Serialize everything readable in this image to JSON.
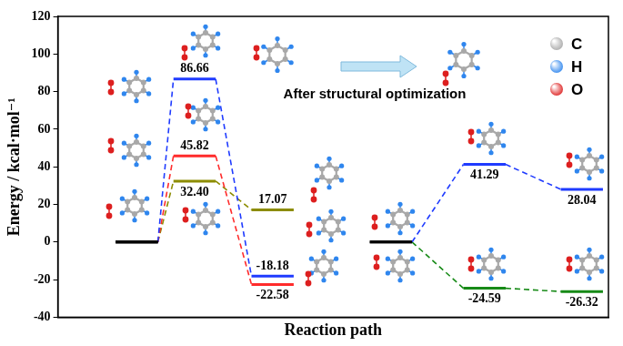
{
  "chart_data": {
    "type": "line",
    "y_label": "Energy / kcal·mol⁻¹",
    "x_label": "Reaction path",
    "ylim": [
      -40,
      120
    ],
    "yticks": [
      -40,
      -20,
      0,
      20,
      40,
      60,
      80,
      100,
      120
    ],
    "grid": false,
    "tick_labels": "y",
    "data_labels": true,
    "categories": [
      null,
      null,
      null,
      null,
      null,
      null
    ],
    "series": [
      {
        "color": "#1f3bff",
        "line_style": "dashed",
        "colors": [
          "#000000",
          "#1f3bff",
          "#1f3bff",
          null,
          null,
          null
        ],
        "values": [
          0,
          86.66,
          -18.18,
          null,
          null,
          null
        ],
        "value_labels": [
          null,
          "86.66",
          "-18.18",
          null,
          null,
          null
        ]
      },
      {
        "color": "#ff2b2b",
        "line_style": "dashed",
        "colors": [
          "#000000",
          "#ff2b2b",
          "#ff2b2b",
          null,
          null,
          null
        ],
        "values": [
          0,
          45.82,
          -22.58,
          null,
          null,
          null
        ],
        "value_labels": [
          null,
          "45.82",
          "-22.58",
          null,
          null,
          null
        ]
      },
      {
        "color": "#8c8c00",
        "line_style": "dashed",
        "colors": [
          "#000000",
          "#8c8c00",
          "#8c8c00",
          null,
          null,
          null
        ],
        "values": [
          0,
          32.4,
          17.07,
          null,
          null,
          null
        ],
        "value_labels": [
          null,
          "32.40",
          "17.07",
          null,
          null,
          null
        ]
      },
      {
        "color": "#1f3bff",
        "line_style": "dashed",
        "colors": [
          null,
          null,
          null,
          "#000000",
          "#1f3bff",
          "#1f3bff"
        ],
        "values": [
          null,
          null,
          null,
          0,
          41.29,
          28.04
        ],
        "value_labels": [
          null,
          null,
          null,
          null,
          "41.29",
          "28.04"
        ]
      },
      {
        "color": "#178a17",
        "line_style": "dashed",
        "colors": [
          null,
          null,
          null,
          "#000000",
          "#178a17",
          "#178a17"
        ],
        "values": [
          null,
          null,
          null,
          0,
          -24.59,
          -26.32
        ],
        "value_labels": [
          null,
          null,
          null,
          null,
          "-24.59",
          "-26.32"
        ]
      }
    ],
    "annotations": [
      "After structural optimization"
    ],
    "element_key": [
      {
        "label": "C",
        "color": "#a8a8a8"
      },
      {
        "label": "H",
        "color": "#2f86ee"
      },
      {
        "label": "O",
        "color": "#dd1f1f"
      }
    ]
  }
}
